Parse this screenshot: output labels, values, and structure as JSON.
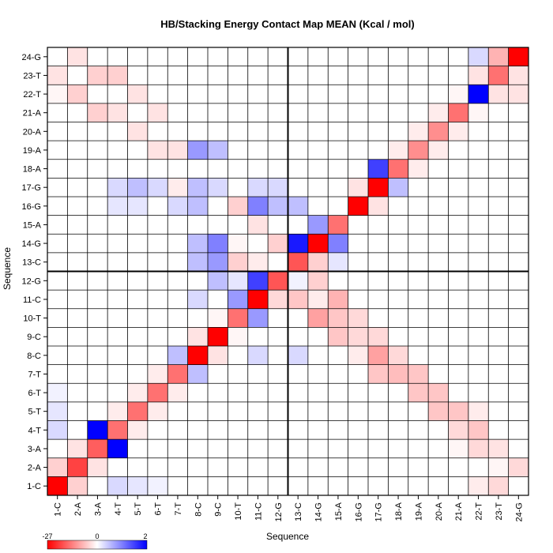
{
  "chart_data": {
    "type": "heatmap",
    "title": "HB/Stacking Energy Contact Map MEAN (Kcal / mol)",
    "xlabel": "Sequence",
    "ylabel": "Sequence",
    "sequence": [
      "1-C",
      "2-A",
      "3-A",
      "4-T",
      "5-T",
      "6-T",
      "7-T",
      "8-C",
      "9-C",
      "10-T",
      "11-C",
      "12-G",
      "13-C",
      "14-G",
      "15-A",
      "16-G",
      "17-G",
      "18-A",
      "19-A",
      "20-A",
      "21-A",
      "22-T",
      "23-T",
      "24-G"
    ],
    "colorbar": {
      "min": -27,
      "mid": 0,
      "max": 2,
      "min_label": "-27",
      "mid_label": "0",
      "max_label": "2"
    },
    "colors": {
      "negative": "#ff0000",
      "positive": "#0000ff",
      "neutral": "#ffffff",
      "grid": "#000000"
    },
    "divider_after_index": 12,
    "matrix": [
      [
        -27,
        -5,
        0,
        0.3,
        0.2,
        0.1,
        0,
        0,
        0,
        0,
        0,
        0,
        0,
        0,
        0,
        0,
        0,
        0,
        0,
        0,
        0,
        -2,
        -4,
        0
      ],
      [
        -5,
        -20,
        -3,
        0,
        0,
        0,
        0,
        0,
        0,
        0,
        0,
        0,
        0,
        0,
        0,
        0,
        0,
        0,
        0,
        0,
        0,
        0,
        -1,
        -4
      ],
      [
        0,
        -3,
        -17,
        2,
        0,
        0,
        0,
        0,
        0,
        0,
        0,
        0,
        0,
        0,
        0,
        0,
        0,
        0,
        0,
        0,
        -1,
        -4,
        -3,
        0
      ],
      [
        0.3,
        0,
        2,
        -15,
        -2,
        0,
        0,
        0,
        0,
        0,
        0,
        0,
        0,
        0,
        0,
        0,
        0,
        0,
        0,
        0,
        -4,
        -6,
        0,
        0
      ],
      [
        0.2,
        0,
        0,
        -2,
        -15,
        -2,
        0,
        0,
        0,
        0,
        0,
        0,
        0,
        0,
        0,
        0,
        0,
        0,
        0,
        -6,
        -6,
        -2,
        0,
        0
      ],
      [
        0.1,
        0,
        0,
        0,
        -2,
        -15,
        -2,
        0,
        0,
        0,
        0,
        0,
        0,
        0,
        0,
        0,
        0,
        0,
        -6,
        -6,
        0,
        0,
        0,
        0
      ],
      [
        0,
        0,
        0,
        0,
        0,
        -2,
        -15,
        0.5,
        0,
        0,
        0,
        0,
        0,
        0,
        0,
        0,
        -6,
        -7,
        -6,
        0,
        0,
        0,
        0,
        0
      ],
      [
        0,
        0,
        0,
        0,
        0,
        0,
        0.5,
        -27,
        -3,
        0,
        0.3,
        0,
        0.3,
        0,
        0,
        -2,
        -10,
        -4,
        0,
        0,
        0,
        0,
        0,
        0
      ],
      [
        0,
        0,
        0,
        0,
        0,
        0,
        0,
        -3,
        -27,
        -1,
        0,
        0,
        0,
        0,
        -6,
        -4,
        -4,
        0,
        0,
        0,
        0,
        0,
        0,
        0
      ],
      [
        0,
        0,
        0,
        0,
        0,
        0,
        0,
        0,
        -1,
        -15,
        0.8,
        0,
        0,
        -10,
        -6,
        -4,
        0,
        0,
        0,
        0,
        0,
        0,
        0,
        0
      ],
      [
        0,
        0,
        0,
        0,
        0,
        0,
        0,
        0.3,
        0,
        0.8,
        -27,
        -4,
        -6,
        -2,
        -8,
        0,
        0,
        0,
        0,
        0,
        0,
        0,
        0,
        0
      ],
      [
        0,
        0,
        0,
        0,
        0,
        0,
        0,
        0,
        0.5,
        0.2,
        1.5,
        -18,
        0.1,
        -5,
        0,
        0,
        0,
        0,
        0,
        0,
        0,
        0,
        0,
        0
      ],
      [
        0,
        0,
        0,
        0,
        0,
        0,
        0,
        0.5,
        0.8,
        -5,
        -2,
        0,
        -18,
        -5,
        0.2,
        0,
        0,
        0,
        0,
        0,
        0,
        0,
        0,
        0
      ],
      [
        0,
        0,
        0,
        0,
        0,
        0,
        0,
        0.5,
        1,
        -1,
        0,
        -5,
        1.8,
        -27,
        1,
        0,
        0,
        0,
        0,
        0,
        0,
        0,
        0,
        0
      ],
      [
        0,
        0,
        0,
        0,
        0,
        0,
        0,
        0,
        0,
        0,
        -3,
        0,
        0,
        0.8,
        -15,
        0,
        0,
        0,
        0,
        0,
        0,
        0,
        0,
        0
      ],
      [
        0,
        0,
        0,
        0.2,
        0.2,
        0,
        0.3,
        0.5,
        0,
        -5,
        1,
        0.5,
        0.5,
        0,
        0,
        -27,
        -3,
        0,
        0,
        0,
        0,
        0,
        0,
        0
      ],
      [
        0,
        0,
        0,
        0.3,
        0.5,
        0.3,
        -2,
        0.5,
        0.3,
        0,
        0.3,
        0.3,
        0,
        0,
        0,
        -3,
        -27,
        0.5,
        0,
        0,
        0,
        0,
        0,
        0
      ],
      [
        0,
        0,
        0,
        0,
        0,
        0,
        0,
        0,
        0,
        0,
        0,
        0,
        0,
        0,
        0,
        0,
        1.5,
        -15,
        -2,
        0,
        0,
        0,
        0,
        0
      ],
      [
        0,
        0,
        0,
        0,
        0,
        -3,
        -3,
        0.8,
        0.5,
        0,
        0,
        0,
        0,
        0,
        0,
        0,
        0,
        -2,
        -12,
        -2,
        0,
        0,
        0,
        0
      ],
      [
        0,
        0,
        0,
        0,
        -3,
        0,
        0,
        0,
        0,
        0,
        0,
        0,
        0,
        0,
        0,
        0,
        0,
        0,
        -2,
        -12,
        -2,
        0,
        0,
        0
      ],
      [
        0,
        0,
        -5,
        -3,
        0,
        -3,
        0,
        0,
        0,
        0,
        0,
        0,
        0,
        0,
        0,
        0,
        0,
        0,
        0,
        -2,
        -15,
        -1,
        0,
        0
      ],
      [
        -1,
        -5,
        0,
        0,
        -3,
        0,
        0,
        0,
        0,
        0,
        0,
        0,
        0,
        0,
        0,
        0,
        0,
        0,
        0,
        0,
        -1,
        2,
        -3,
        -3
      ],
      [
        -3,
        0,
        -5,
        -5,
        0,
        0,
        0,
        0,
        0,
        0,
        0,
        0,
        0,
        0,
        0,
        0,
        0,
        0,
        0,
        0,
        0,
        -3,
        -15,
        -3
      ],
      [
        0,
        -3,
        0,
        0,
        0,
        0,
        0,
        0,
        0,
        0,
        0,
        0,
        0,
        0,
        0,
        0,
        0,
        0,
        0,
        0,
        0,
        0.3,
        -8,
        -27
      ]
    ]
  }
}
